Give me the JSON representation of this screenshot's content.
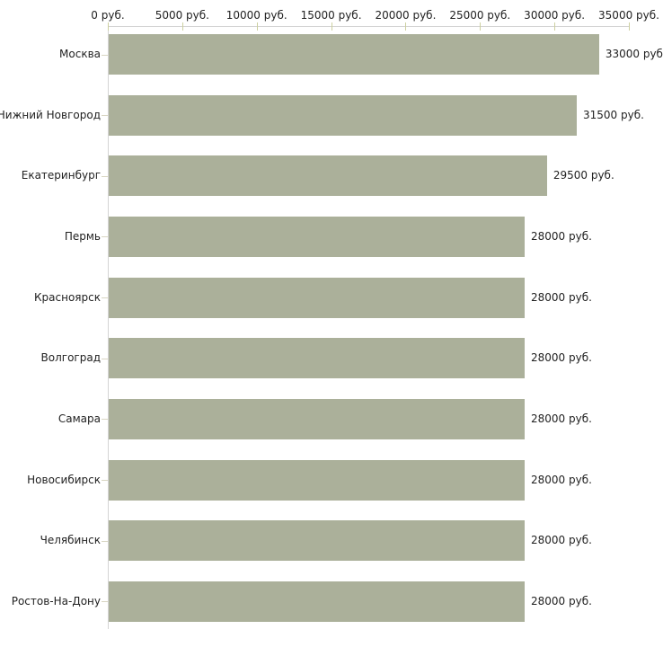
{
  "chart_data": {
    "type": "bar",
    "orientation": "horizontal",
    "title": "",
    "xlabel": "",
    "ylabel": "",
    "grid": false,
    "legend": "none",
    "xlim": [
      0,
      35000
    ],
    "x_ticks": [
      {
        "value": 0,
        "label": "0 руб."
      },
      {
        "value": 5000,
        "label": "5000 руб."
      },
      {
        "value": 10000,
        "label": "10000 руб."
      },
      {
        "value": 15000,
        "label": "15000 руб."
      },
      {
        "value": 20000,
        "label": "20000 руб."
      },
      {
        "value": 25000,
        "label": "25000 руб."
      },
      {
        "value": 30000,
        "label": "30000 руб."
      },
      {
        "value": 35000,
        "label": "35000 руб."
      }
    ],
    "categories": [
      "Москва",
      "Нижний Новгород",
      "Екатеринбург",
      "Пермь",
      "Красноярск",
      "Волгоград",
      "Самара",
      "Новосибирск",
      "Челябинск",
      "Ростов-На-Дону"
    ],
    "values": [
      33000,
      31500,
      29500,
      28000,
      28000,
      28000,
      28000,
      28000,
      28000,
      28000
    ],
    "value_labels": [
      "33000 руб",
      "31500 руб.",
      "29500 руб.",
      "28000 руб.",
      "28000 руб.",
      "28000 руб.",
      "28000 руб.",
      "28000 руб.",
      "28000 руб.",
      "28000 руб."
    ],
    "colors": {
      "bar": "#abb09a",
      "axis_line": "#d4d4d4",
      "x_tick_mark": "#cdd0a0",
      "cat_tick_mark": "#d8d5c2",
      "text": "#222222",
      "background": "#ffffff"
    }
  }
}
